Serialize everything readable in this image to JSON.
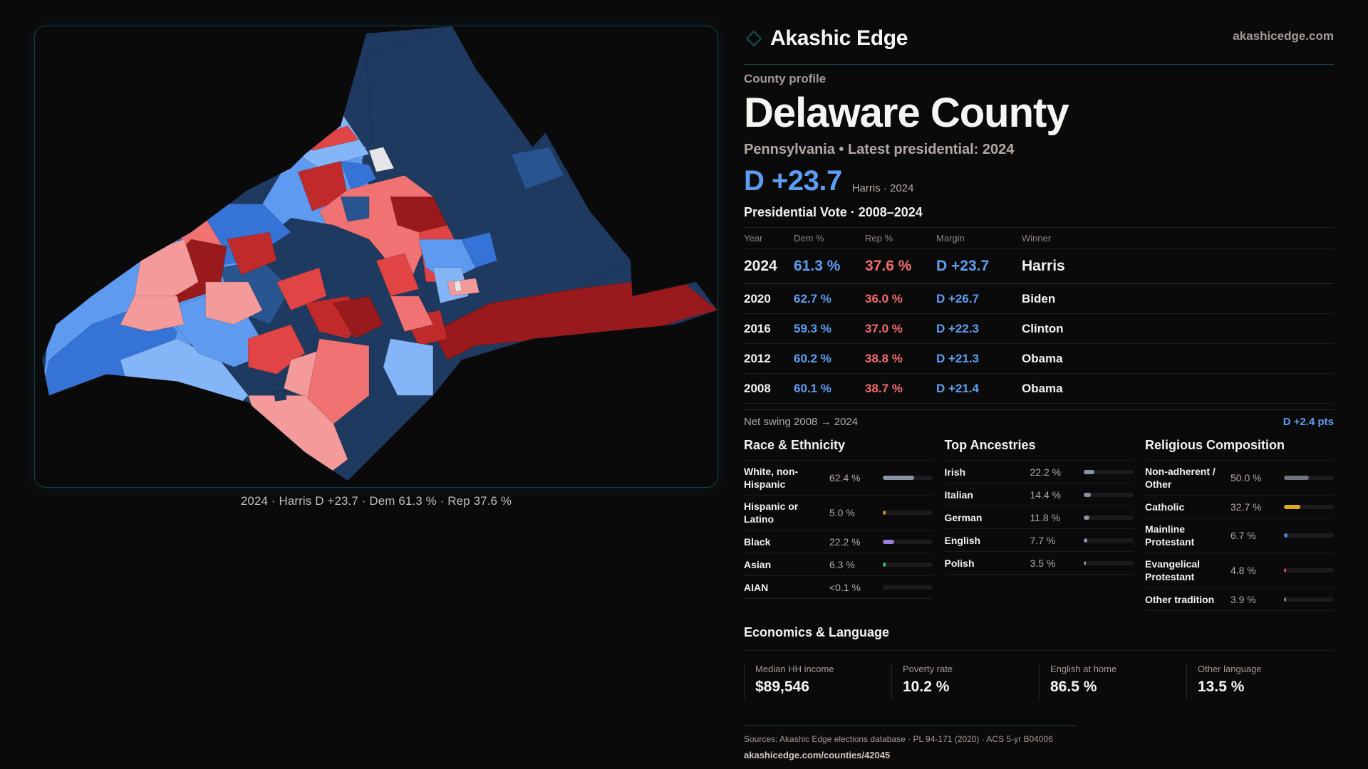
{
  "brand": {
    "name": "Akashic Edge",
    "site": "akashicedge.com",
    "icon": "diamond-outline-icon",
    "accent": "#16434a"
  },
  "profile": {
    "kicker": "County profile",
    "title": "Delaware County",
    "subtitle": "Pennsylvania • Latest presidential: 2024",
    "margin": "D +23.7",
    "margin_sub": "Harris · 2024"
  },
  "colors": {
    "dem": "#5b9ef0",
    "rep": "#f26b6b",
    "text": "#f3f1ee",
    "muted": "#a39a94"
  },
  "votes": {
    "title": "Presidential Vote · 2008–2024",
    "headers": [
      "Year",
      "Dem %",
      "Rep %",
      "Margin",
      "Winner"
    ],
    "rows": [
      {
        "year": "2024",
        "dem": "61.3 %",
        "rep": "37.6 %",
        "margin": "D +23.7",
        "winner": "Harris"
      },
      {
        "year": "2020",
        "dem": "62.7 %",
        "rep": "36.0 %",
        "margin": "D +26.7",
        "winner": "Biden"
      },
      {
        "year": "2016",
        "dem": "59.3 %",
        "rep": "37.0 %",
        "margin": "D +22.3",
        "winner": "Clinton"
      },
      {
        "year": "2012",
        "dem": "60.2 %",
        "rep": "38.8 %",
        "margin": "D +21.3",
        "winner": "Obama"
      },
      {
        "year": "2008",
        "dem": "60.1 %",
        "rep": "38.7 %",
        "margin": "D +21.4",
        "winner": "Obama"
      }
    ],
    "swing_label": "Net swing 2008 → 2024",
    "swing_value": "D +2.4 pts"
  },
  "race": {
    "title": "Race & Ethnicity",
    "items": [
      {
        "label": "White, non-Hispanic",
        "value": "62.4 %",
        "pct": 62.4,
        "color": "#8893a6"
      },
      {
        "label": "Hispanic or Latino",
        "value": "5.0 %",
        "pct": 5.0,
        "color": "#d98a1a"
      },
      {
        "label": "Black",
        "value": "22.2 %",
        "pct": 22.2,
        "color": "#9a7ee0"
      },
      {
        "label": "Asian",
        "value": "6.3 %",
        "pct": 6.3,
        "color": "#2fbf86"
      },
      {
        "label": "AIAN",
        "value": "<0.1 %",
        "pct": 0.05,
        "color": "#c9a06a"
      }
    ]
  },
  "ancestry": {
    "title": "Top Ancestries",
    "items": [
      {
        "label": "Irish",
        "value": "22.2 %",
        "pct": 22.2,
        "color": "#8893a6"
      },
      {
        "label": "Italian",
        "value": "14.4 %",
        "pct": 14.4,
        "color": "#8893a6"
      },
      {
        "label": "German",
        "value": "11.8 %",
        "pct": 11.8,
        "color": "#8893a6"
      },
      {
        "label": "English",
        "value": "7.7 %",
        "pct": 7.7,
        "color": "#8893a6"
      },
      {
        "label": "Polish",
        "value": "3.5 %",
        "pct": 3.5,
        "color": "#8893a6"
      }
    ]
  },
  "religion": {
    "title": "Religious Composition",
    "items": [
      {
        "label": "Non-adherent / Other",
        "value": "50.0 %",
        "pct": 50.0,
        "color": "#70747f"
      },
      {
        "label": "Catholic",
        "value": "32.7 %",
        "pct": 32.7,
        "color": "#e0a820"
      },
      {
        "label": "Mainline Protestant",
        "value": "6.7 %",
        "pct": 6.7,
        "color": "#4a86e0"
      },
      {
        "label": "Evangelical Protestant",
        "value": "4.8 %",
        "pct": 4.8,
        "color": "#e05050"
      },
      {
        "label": "Other tradition",
        "value": "3.9 %",
        "pct": 3.9,
        "color": "#8a8a90"
      }
    ]
  },
  "economics": {
    "title": "Economics & Language",
    "cards": [
      {
        "label": "Median HH income",
        "value": "$89,546"
      },
      {
        "label": "Poverty rate",
        "value": "10.2 %"
      },
      {
        "label": "English at home",
        "value": "86.5 %"
      },
      {
        "label": "Other language",
        "value": "13.5 %"
      }
    ]
  },
  "sources": {
    "text": "Sources: Akashic Edge elections database · PL 94-171 (2020) · ACS 5-yr B04006",
    "url": "akashicedge.com/counties/42045"
  },
  "map": {
    "caption": "2024 · Harris D +23.7 · Dem 61.3 % · Rep 37.6 %",
    "palette": {
      "d_safe": "#1f3a60",
      "d_likely": "#28548f",
      "d_lean": "#3574d6",
      "d_tilt": "#5d9af0",
      "d_slight": "#84b6f7",
      "tossup": "#e6e6e8",
      "r_slight": "#f59a9a",
      "r_tilt": "#f07272",
      "r_lean": "#e04444",
      "r_likely": "#c12a2a",
      "r_safe": "#981a1c"
    }
  }
}
